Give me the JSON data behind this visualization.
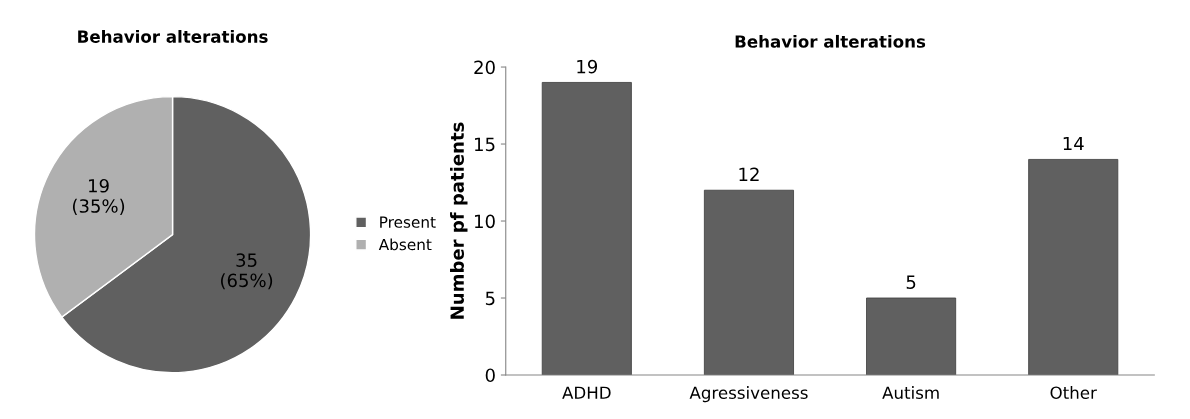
{
  "chart_data": [
    {
      "type": "pie",
      "title": "Behavior alterations",
      "categories": [
        "Present",
        "Absent"
      ],
      "values": [
        35,
        19
      ],
      "colors": [
        "#606060",
        "#b0b0b0"
      ],
      "value_labels": [
        "35\n(65%)",
        "19\n(35%)"
      ],
      "legend": "right"
    },
    {
      "type": "bar",
      "title": "Behavior alterations",
      "ylabel": "Number pf patients",
      "categories": [
        "ADHD",
        "Agressiveness",
        "Autism",
        "Other"
      ],
      "values": [
        19,
        12,
        5,
        14
      ],
      "color": "#606060",
      "ylim": [
        0,
        20
      ],
      "yticks": [
        0,
        5,
        10,
        15,
        20
      ],
      "data_labels": true,
      "grid": false,
      "legend": false
    }
  ]
}
